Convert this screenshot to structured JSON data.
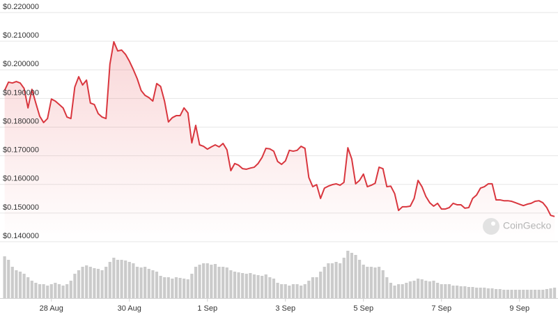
{
  "chart_data": {
    "type": "line",
    "x": [
      26.8,
      26.9,
      27.0,
      27.1,
      27.2,
      27.3,
      27.4,
      27.5,
      27.6,
      27.7,
      27.8,
      27.9,
      28.0,
      28.1,
      28.2,
      28.3,
      28.4,
      28.5,
      28.6,
      28.7,
      28.8,
      28.9,
      29.0,
      29.1,
      29.2,
      29.3,
      29.4,
      29.5,
      29.6,
      29.7,
      29.8,
      29.9,
      30.0,
      30.1,
      30.2,
      30.3,
      30.4,
      30.5,
      30.6,
      30.7,
      30.8,
      30.9,
      31.0,
      31.1,
      31.2,
      31.3,
      31.4,
      31.5,
      31.6,
      31.7,
      31.8,
      31.9,
      32.0,
      32.1,
      32.2,
      32.3,
      32.4,
      32.5,
      32.6,
      32.7,
      32.8,
      32.9,
      33.0,
      33.1,
      33.2,
      33.3,
      33.4,
      33.5,
      33.6,
      33.7,
      33.8,
      33.9,
      34.0,
      34.1,
      34.2,
      34.3,
      34.4,
      34.5,
      34.6,
      34.7,
      34.8,
      34.9,
      35.0,
      35.1,
      35.2,
      35.3,
      35.4,
      35.5,
      35.6,
      35.7,
      35.8,
      35.9,
      36.0,
      36.1,
      36.2,
      36.3,
      36.4,
      36.5,
      36.6,
      36.7,
      36.8,
      36.9,
      37.0,
      37.1,
      37.2,
      37.3,
      37.4,
      37.5,
      37.6,
      37.7,
      37.8,
      37.9,
      38.0,
      38.1,
      38.2,
      38.3,
      38.4,
      38.5,
      38.6,
      38.7,
      38.8,
      38.9,
      39.0,
      39.1,
      39.2,
      39.3,
      39.4,
      39.5,
      39.6,
      39.7,
      39.8,
      39.9,
      40.0,
      40.1,
      40.2,
      40.3,
      40.4,
      40.5,
      40.6,
      40.7,
      40.8,
      40.9
    ],
    "series": [
      {
        "color": "#d9363e",
        "values": [
          0.1928,
          0.1957,
          0.1954,
          0.1959,
          0.1954,
          0.1935,
          0.1867,
          0.1932,
          0.1884,
          0.1838,
          0.1816,
          0.183,
          0.1898,
          0.1891,
          0.1879,
          0.1867,
          0.1835,
          0.183,
          0.194,
          0.1976,
          0.1947,
          0.1964,
          0.1884,
          0.1879,
          0.1847,
          0.1835,
          0.183,
          0.202,
          0.2098,
          0.2066,
          0.2069,
          0.2054,
          0.203,
          0.2001,
          0.1969,
          0.1928,
          0.1911,
          0.1903,
          0.1891,
          0.1952,
          0.1942,
          0.1891,
          0.1818,
          0.1833,
          0.184,
          0.184,
          0.1867,
          0.185,
          0.1745,
          0.1806,
          0.1738,
          0.1733,
          0.1723,
          0.1731,
          0.1738,
          0.1731,
          0.1743,
          0.1721,
          0.1648,
          0.1673,
          0.1667,
          0.1655,
          0.1653,
          0.1657,
          0.166,
          0.1673,
          0.1694,
          0.1726,
          0.1724,
          0.1716,
          0.168,
          0.167,
          0.1682,
          0.1719,
          0.1716,
          0.1719,
          0.1733,
          0.1726,
          0.1624,
          0.1592,
          0.1599,
          0.1551,
          0.1587,
          0.1594,
          0.1599,
          0.1602,
          0.1597,
          0.1607,
          0.1728,
          0.1689,
          0.1602,
          0.1614,
          0.1636,
          0.1592,
          0.1597,
          0.1604,
          0.166,
          0.1655,
          0.1592,
          0.1594,
          0.1568,
          0.1509,
          0.1522,
          0.1522,
          0.1524,
          0.1551,
          0.1614,
          0.1592,
          0.1558,
          0.1536,
          0.1524,
          0.1534,
          0.1514,
          0.1514,
          0.1519,
          0.1534,
          0.1529,
          0.1529,
          0.1517,
          0.1519,
          0.1551,
          0.1563,
          0.1587,
          0.1592,
          0.1602,
          0.1602,
          0.1546,
          0.1546,
          0.1543,
          0.1543,
          0.1541,
          0.1536,
          0.1531,
          0.1526,
          0.1531,
          0.1534,
          0.1541,
          0.1543,
          0.1536,
          0.1519,
          0.1492,
          0.1488
        ]
      }
    ],
    "volume": {
      "type": "bar",
      "color": "#cbcbcb",
      "ylim": [
        0,
        100
      ],
      "values": [
        60,
        55,
        45,
        40,
        38,
        35,
        30,
        25,
        22,
        20,
        20,
        18,
        20,
        22,
        20,
        18,
        20,
        25,
        35,
        40,
        45,
        47,
        45,
        43,
        42,
        40,
        45,
        52,
        58,
        55,
        55,
        54,
        52,
        50,
        45,
        44,
        45,
        42,
        40,
        38,
        32,
        30,
        30,
        28,
        30,
        29,
        28,
        27,
        35,
        45,
        48,
        50,
        50,
        48,
        49,
        45,
        45,
        44,
        40,
        38,
        37,
        36,
        35,
        36,
        34,
        33,
        32,
        34,
        30,
        28,
        22,
        20,
        20,
        18,
        20,
        20,
        18,
        20,
        25,
        30,
        30,
        38,
        45,
        50,
        50,
        52,
        50,
        58,
        68,
        65,
        62,
        55,
        48,
        45,
        45,
        44,
        45,
        40,
        30,
        22,
        18,
        20,
        20,
        22,
        24,
        25,
        28,
        27,
        25,
        24,
        25,
        22,
        20,
        20,
        20,
        18,
        18,
        17,
        17,
        16,
        16,
        15,
        15,
        15,
        14,
        14,
        13,
        13,
        12,
        12,
        12,
        12,
        12,
        12,
        12,
        12,
        12,
        12,
        12,
        13,
        14,
        15
      ]
    },
    "xlim": [
      26.7,
      40.97
    ],
    "xticks": [
      {
        "value": 28,
        "label": "28 Aug"
      },
      {
        "value": 30,
        "label": "30 Aug"
      },
      {
        "value": 32,
        "label": "1 Sep"
      },
      {
        "value": 34,
        "label": "3 Sep"
      },
      {
        "value": 36,
        "label": "5 Sep"
      },
      {
        "value": 38,
        "label": "7 Sep"
      },
      {
        "value": 40,
        "label": "9 Sep"
      }
    ],
    "ylim": [
      0.14,
      0.22
    ],
    "yticks": [
      {
        "value": 0.22,
        "label": "$0.220000"
      },
      {
        "value": 0.21,
        "label": "$0.210000"
      },
      {
        "value": 0.2,
        "label": "$0.200000"
      },
      {
        "value": 0.19,
        "label": "$0.190000"
      },
      {
        "value": 0.18,
        "label": "$0.180000"
      },
      {
        "value": 0.17,
        "label": "$0.170000"
      },
      {
        "value": 0.16,
        "label": "$0.160000"
      },
      {
        "value": 0.15,
        "label": "$0.150000"
      },
      {
        "value": 0.14,
        "label": "$0.140000"
      }
    ],
    "grid": true,
    "watermark": "CoinGecko"
  }
}
